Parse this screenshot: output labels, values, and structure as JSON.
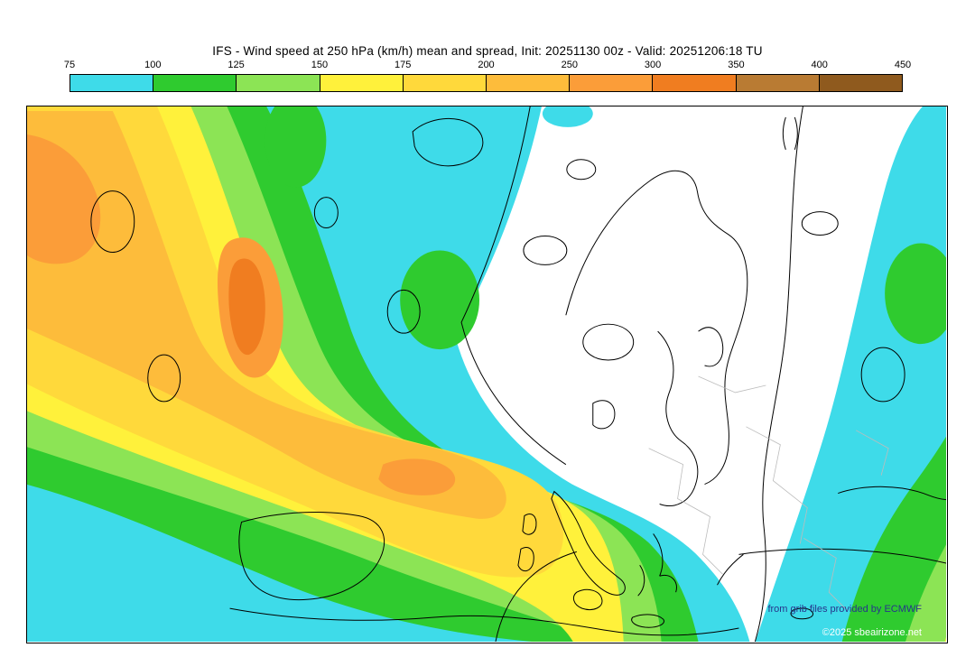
{
  "title": "IFS - Wind speed at 250 hPa (km/h) mean and spread, Init: 20251130 00z - Valid: 20251206:18 TU",
  "colorbar": {
    "tick_labels": [
      "75",
      "100",
      "125",
      "150",
      "175",
      "200",
      "250",
      "300",
      "350",
      "400",
      "450"
    ],
    "segments": [
      "c75",
      "c100",
      "c125",
      "c150",
      "c175",
      "c200",
      "c250",
      "c300",
      "c350",
      "c400"
    ]
  },
  "palette": {
    "c75": "#3EDBE9",
    "c100": "#2FCB2F",
    "c125": "#8CE455",
    "c150": "#FFF13B",
    "c175": "#FFD93B",
    "c200": "#FDBC3B",
    "c250": "#FB9D39",
    "c300": "#F07D20",
    "c350": "#B97B33",
    "c400": "#8F5A1E",
    "contour_black": "#000000",
    "border_gray": "#bcbcbc",
    "credit_blue": "#27348b",
    "credit_white": "#ffffff"
  },
  "map": {
    "credit_line1": "from grib files provided by ECMWF",
    "credit_line2": "©2025 sbeairizone.net"
  }
}
